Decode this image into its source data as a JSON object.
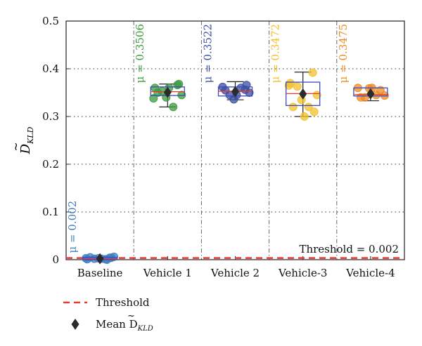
{
  "chart_data": {
    "type": "box",
    "ylabel_main": "D",
    "ylabel_sub": "KLD",
    "ylim": [
      0,
      0.5
    ],
    "yticks": [
      "0",
      "0.1",
      "0.2",
      "0.3",
      "0.4",
      "0.5"
    ],
    "yticks_values": [
      0,
      0.1,
      0.2,
      0.3,
      0.4,
      0.5
    ],
    "grid": "dotted",
    "categories": [
      "Baseline",
      "Vehicle 1",
      "Vehicle 2",
      "Vehicle-3",
      "Vehicle-4"
    ],
    "colors": [
      "#3f7ec0",
      "#3c9a3c",
      "#3b4fa0",
      "#f2c12e",
      "#ef8a24"
    ],
    "mean_labels": [
      "μ = 0.002",
      "μ = 0.3506",
      "μ = 0.3522",
      "μ = 0.3472",
      "μ = 0.3475"
    ],
    "means": [
      0.002,
      0.3506,
      0.3522,
      0.3472,
      0.3475
    ],
    "boxes": [
      {
        "q1": 0.0,
        "median": 0.002,
        "q3": 0.005,
        "whisker_low": 0.0,
        "whisker_high": 0.006
      },
      {
        "q1": 0.344,
        "median": 0.352,
        "q3": 0.362,
        "whisker_low": 0.32,
        "whisker_high": 0.368
      },
      {
        "q1": 0.343,
        "median": 0.353,
        "q3": 0.362,
        "whisker_low": 0.335,
        "whisker_high": 0.373
      },
      {
        "q1": 0.323,
        "median": 0.348,
        "q3": 0.372,
        "whisker_low": 0.3,
        "whisker_high": 0.393
      },
      {
        "q1": 0.343,
        "median": 0.346,
        "q3": 0.36,
        "whisker_low": 0.333,
        "whisker_high": 0.36
      }
    ],
    "points": [
      [
        0.001,
        0.004,
        0.002,
        0.006,
        0.003,
        0.001,
        0.005,
        0.002,
        0.004,
        0.003,
        0.0
      ],
      [
        0.36,
        0.366,
        0.353,
        0.345,
        0.34,
        0.32,
        0.35,
        0.36,
        0.368,
        0.338
      ],
      [
        0.362,
        0.356,
        0.345,
        0.35,
        0.336,
        0.36,
        0.355,
        0.345,
        0.366
      ],
      [
        0.37,
        0.392,
        0.363,
        0.345,
        0.335,
        0.32,
        0.32,
        0.3,
        0.31,
        0.365
      ],
      [
        0.36,
        0.355,
        0.34,
        0.344,
        0.359,
        0.345,
        0.34,
        0.36
      ]
    ],
    "threshold": 0.002,
    "threshold_color": "#e8392f",
    "threshold_label": "Threshold = 0.002",
    "legend": [
      {
        "label": "Threshold"
      },
      {
        "label_main": "Mean D",
        "label_sub": "KLD"
      }
    ]
  }
}
